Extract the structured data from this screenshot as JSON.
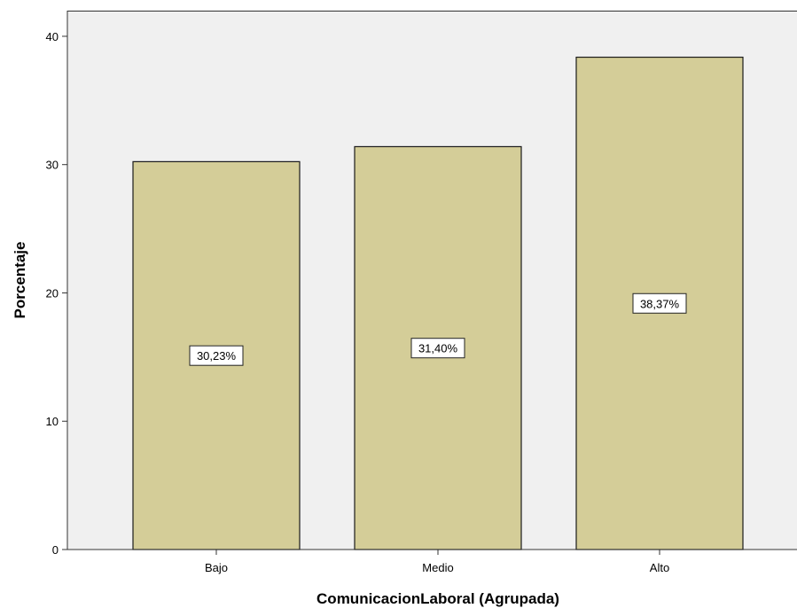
{
  "chart_data": {
    "type": "bar",
    "categories": [
      "Bajo",
      "Medio",
      "Alto"
    ],
    "values": [
      30.23,
      31.4,
      38.37
    ],
    "data_labels": [
      "30,23%",
      "31,40%",
      "38,37%"
    ],
    "title": "",
    "xlabel": "ComunicacionLaboral (Agrupada)",
    "ylabel": "Porcentaje",
    "ylim": [
      0,
      42
    ],
    "yticks": [
      0,
      10,
      20,
      30,
      40
    ],
    "ytick_labels": [
      "0",
      "10",
      "20",
      "30",
      "40"
    ],
    "grid": false,
    "legend": "none",
    "colors": {
      "bar_fill": "#d4cd98",
      "bar_stroke": "#1a1a1a",
      "plot_background": "#f0f0f0",
      "axis": "#333333",
      "label_box_fill": "#ffffff"
    }
  }
}
